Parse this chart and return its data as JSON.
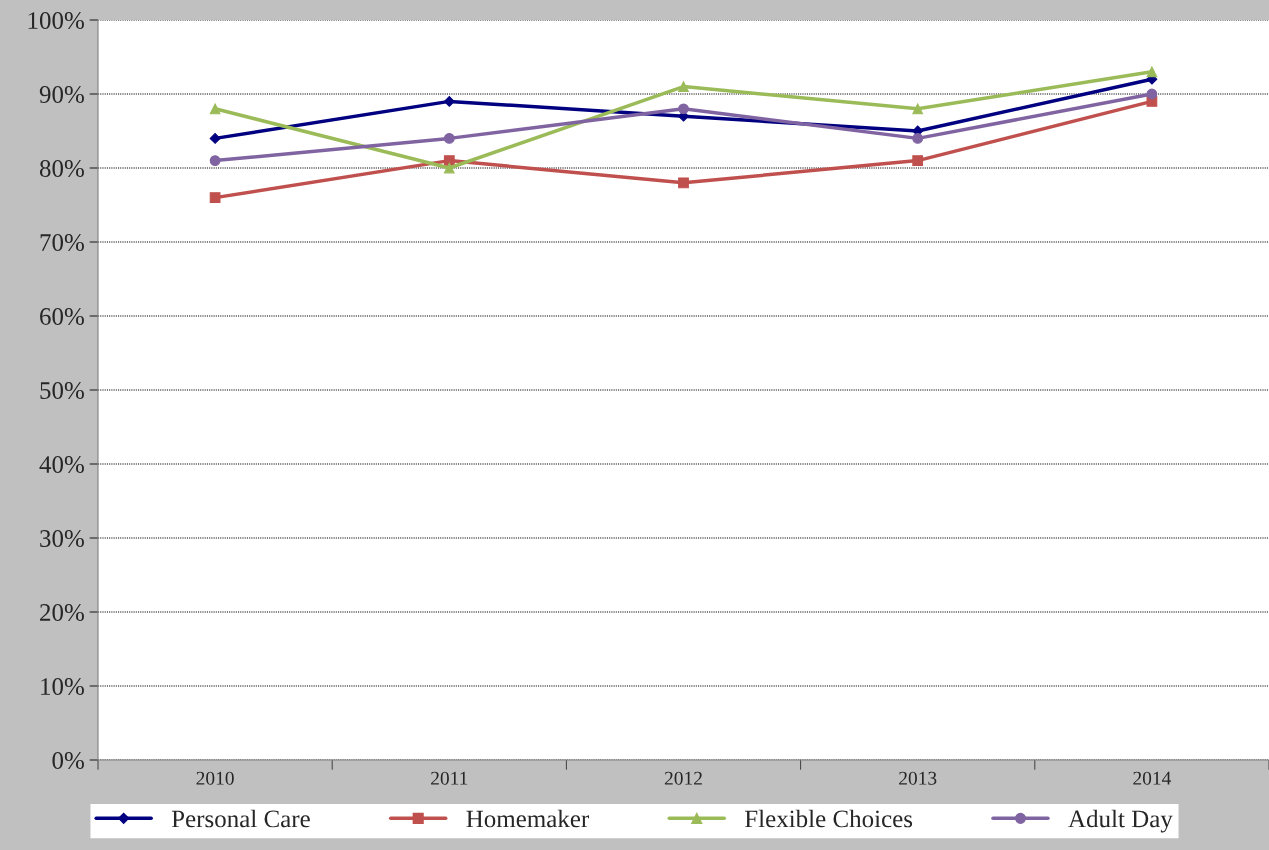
{
  "chart_data": {
    "type": "line",
    "categories": [
      "2010",
      "2011",
      "2012",
      "2013",
      "2014"
    ],
    "series": [
      {
        "name": "Personal Care",
        "color": "#000080",
        "marker": "diamond",
        "values": [
          84,
          89,
          87,
          85,
          92
        ]
      },
      {
        "name": "Homemaker",
        "color": "#c0504d",
        "marker": "square",
        "values": [
          76,
          81,
          78,
          81,
          89
        ]
      },
      {
        "name": "Flexible Choices",
        "color": "#9bbb59",
        "marker": "triangle",
        "values": [
          88,
          80,
          91,
          88,
          93
        ]
      },
      {
        "name": "Adult Day",
        "color": "#8064a2",
        "marker": "circle",
        "values": [
          81,
          84,
          88,
          84,
          90
        ]
      }
    ],
    "ylim": [
      0,
      100
    ],
    "yticks": [
      {
        "value": 0,
        "label": "0%"
      },
      {
        "value": 10,
        "label": "10%"
      },
      {
        "value": 20,
        "label": "20%"
      },
      {
        "value": 30,
        "label": "30%"
      },
      {
        "value": 40,
        "label": "40%"
      },
      {
        "value": 50,
        "label": "50%"
      },
      {
        "value": 60,
        "label": "60%"
      },
      {
        "value": 70,
        "label": "70%"
      },
      {
        "value": 80,
        "label": "80%"
      },
      {
        "value": 90,
        "label": "90%"
      },
      {
        "value": 100,
        "label": "100%"
      }
    ],
    "grid": "y",
    "legend": "bottom",
    "line_style": "solid"
  }
}
